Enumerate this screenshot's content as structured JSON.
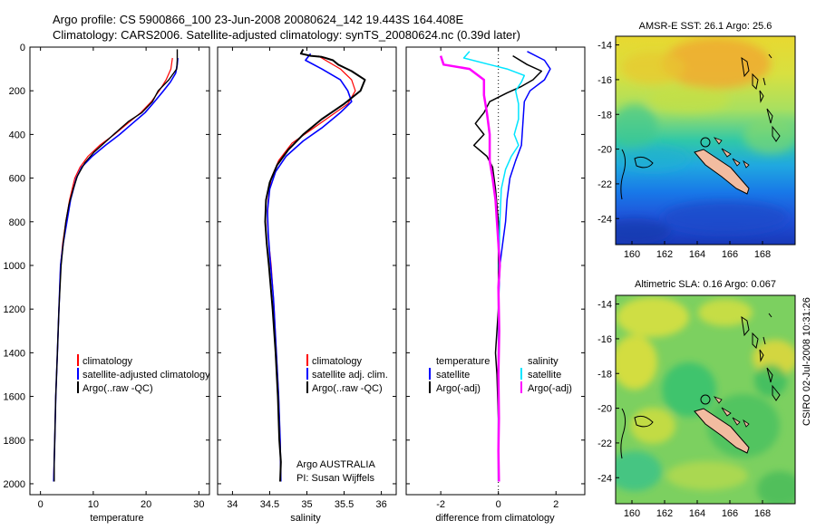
{
  "header": {
    "line1": "Argo profile: CS 5900866_100 23-Jun-2008 20080624_142 19.443S 164.408E",
    "line2": "Climatology: CARS2006. Satellite-adjusted climatology: synTS_20080624.nc (0.39d later)"
  },
  "side_stamp": "CSIRO 02-Jul-2008 10:31:26",
  "colors": {
    "climatology": "#ff0000",
    "satellite": "#0000ff",
    "argo": "#000000",
    "sal_satellite": "#00e5ff",
    "sal_argo": "#ff00ff",
    "land": "#f2bca0"
  },
  "chart_data": [
    {
      "type": "line",
      "title": "",
      "xlabel": "temperature",
      "ylabel": "",
      "xlim": [
        -2,
        32
      ],
      "ylim": [
        2050,
        0
      ],
      "xticks": [
        0,
        10,
        20,
        30
      ],
      "yticks": [
        0,
        200,
        400,
        600,
        800,
        1000,
        1200,
        1400,
        1600,
        1800,
        2000
      ],
      "legend": [
        "climatology",
        "satellite-adjusted climatology",
        "Argo(..raw -QC)"
      ],
      "series": [
        {
          "name": "climatology",
          "color": "#ff0000",
          "width": 1.2,
          "points": [
            [
              25,
              50
            ],
            [
              24.7,
              100
            ],
            [
              23.8,
              150
            ],
            [
              22.5,
              200
            ],
            [
              21,
              250
            ],
            [
              19,
              300
            ],
            [
              16.5,
              350
            ],
            [
              14,
              400
            ],
            [
              11.2,
              450
            ],
            [
              9,
              500
            ],
            [
              7.5,
              550
            ],
            [
              6.5,
              600
            ],
            [
              5.5,
              700
            ],
            [
              4.8,
              800
            ],
            [
              4.2,
              900
            ],
            [
              3.8,
              1000
            ],
            [
              3.5,
              1200
            ],
            [
              3.2,
              1400
            ],
            [
              2.9,
              1600
            ],
            [
              2.7,
              1800
            ],
            [
              2.5,
              1980
            ]
          ]
        },
        {
          "name": "satellite-adjusted climatology",
          "color": "#0000ff",
          "width": 1.6,
          "points": [
            [
              26,
              50
            ],
            [
              25.9,
              80
            ],
            [
              25.6,
              120
            ],
            [
              24.6,
              160
            ],
            [
              23.3,
              200
            ],
            [
              21.6,
              250
            ],
            [
              19.8,
              300
            ],
            [
              17.4,
              350
            ],
            [
              15,
              400
            ],
            [
              12.3,
              450
            ],
            [
              9.8,
              500
            ],
            [
              7.8,
              550
            ],
            [
              6.8,
              600
            ],
            [
              5.7,
              700
            ],
            [
              5,
              800
            ],
            [
              4.3,
              900
            ],
            [
              3.8,
              1000
            ],
            [
              3.5,
              1200
            ],
            [
              3.2,
              1400
            ],
            [
              2.9,
              1600
            ],
            [
              2.7,
              1800
            ],
            [
              2.5,
              1990
            ]
          ]
        },
        {
          "name": "Argo(..raw -QC)",
          "color": "#000000",
          "width": 1.4,
          "points": [
            [
              25.9,
              10
            ],
            [
              25.9,
              60
            ],
            [
              25.8,
              100
            ],
            [
              24.3,
              150
            ],
            [
              22.3,
              200
            ],
            [
              21.2,
              250
            ],
            [
              19.2,
              300
            ],
            [
              16.7,
              340
            ],
            [
              14.8,
              380
            ],
            [
              12.5,
              430
            ],
            [
              10.2,
              480
            ],
            [
              8.4,
              530
            ],
            [
              7,
              590
            ],
            [
              6.2,
              650
            ],
            [
              5.4,
              720
            ],
            [
              4.8,
              800
            ],
            [
              4.3,
              900
            ],
            [
              3.9,
              1000
            ],
            [
              3.5,
              1200
            ],
            [
              3.2,
              1400
            ],
            [
              2.9,
              1600
            ],
            [
              2.7,
              1800
            ],
            [
              2.6,
              1900
            ],
            [
              2.6,
              1990
            ]
          ]
        }
      ]
    },
    {
      "type": "line",
      "title": "",
      "xlabel": "salinity",
      "ylabel": "",
      "xlim": [
        33.8,
        36.2
      ],
      "ylim": [
        2050,
        0
      ],
      "xticks": [
        34,
        34.5,
        35,
        35.5,
        36
      ],
      "yticks": [
        0,
        200,
        400,
        600,
        800,
        1000,
        1200,
        1400,
        1600,
        1800,
        2000
      ],
      "legend": [
        "climatology",
        "satellite adj. clim.",
        "Argo(..raw -QC)"
      ],
      "annotations": [
        "Argo AUSTRALIA",
        "PI: Susan Wijffels"
      ],
      "series": [
        {
          "name": "climatology",
          "color": "#ff0000",
          "width": 1.2,
          "points": [
            [
              35.15,
              40
            ],
            [
              35.3,
              70
            ],
            [
              35.45,
              100
            ],
            [
              35.6,
              150
            ],
            [
              35.65,
              200
            ],
            [
              35.55,
              260
            ],
            [
              35.3,
              320
            ],
            [
              35.05,
              380
            ],
            [
              34.8,
              440
            ],
            [
              34.62,
              520
            ],
            [
              34.52,
              600
            ],
            [
              34.48,
              700
            ],
            [
              34.47,
              800
            ],
            [
              34.49,
              900
            ],
            [
              34.52,
              1000
            ],
            [
              34.56,
              1200
            ],
            [
              34.59,
              1400
            ],
            [
              34.62,
              1600
            ],
            [
              34.64,
              1800
            ],
            [
              34.65,
              1980
            ]
          ]
        },
        {
          "name": "satellite adj. clim.",
          "color": "#0000ff",
          "width": 1.6,
          "points": [
            [
              35.05,
              30
            ],
            [
              34.98,
              60
            ],
            [
              35.2,
              100
            ],
            [
              35.45,
              150
            ],
            [
              35.55,
              200
            ],
            [
              35.6,
              250
            ],
            [
              35.45,
              300
            ],
            [
              35.2,
              370
            ],
            [
              34.95,
              430
            ],
            [
              34.72,
              500
            ],
            [
              34.58,
              570
            ],
            [
              34.5,
              650
            ],
            [
              34.47,
              750
            ],
            [
              34.48,
              850
            ],
            [
              34.5,
              950
            ],
            [
              34.55,
              1150
            ],
            [
              34.59,
              1400
            ],
            [
              34.62,
              1600
            ],
            [
              34.64,
              1800
            ],
            [
              34.65,
              1990
            ]
          ]
        },
        {
          "name": "Argo(..raw -QC)",
          "color": "#000000",
          "width": 2,
          "points": [
            [
              34.95,
              10
            ],
            [
              34.92,
              30
            ],
            [
              35.05,
              40
            ],
            [
              35.2,
              45
            ],
            [
              35.25,
              50
            ],
            [
              35.35,
              60
            ],
            [
              35.42,
              80
            ],
            [
              35.6,
              110
            ],
            [
              35.78,
              150
            ],
            [
              35.72,
              200
            ],
            [
              35.5,
              260
            ],
            [
              35.2,
              330
            ],
            [
              34.95,
              400
            ],
            [
              34.75,
              470
            ],
            [
              34.6,
              540
            ],
            [
              34.5,
              620
            ],
            [
              34.45,
              700
            ],
            [
              34.44,
              800
            ],
            [
              34.46,
              900
            ],
            [
              34.49,
              1000
            ],
            [
              34.54,
              1200
            ],
            [
              34.58,
              1400
            ],
            [
              34.61,
              1600
            ],
            [
              34.63,
              1800
            ],
            [
              34.65,
              1900
            ],
            [
              34.64,
              1990
            ]
          ]
        }
      ]
    },
    {
      "type": "line",
      "title": "",
      "xlabel": "difference from climatology",
      "ylabel": "",
      "xlim": [
        -3.2,
        3
      ],
      "ylim": [
        2050,
        0
      ],
      "xticks": [
        -2,
        0,
        2
      ],
      "yticks": [
        0,
        200,
        400,
        600,
        800,
        1000,
        1200,
        1400,
        1600,
        1800,
        2000
      ],
      "legend_temperature": [
        "temperature",
        "satellite",
        "Argo(-adj)"
      ],
      "legend_salinity": [
        "salinity",
        "satellite",
        "Argo(-adj)"
      ],
      "series": [
        {
          "name": "temperature satellite",
          "color": "#0000ff",
          "width": 1.5,
          "points": [
            [
              1,
              20
            ],
            [
              1.6,
              60
            ],
            [
              1.8,
              100
            ],
            [
              1.6,
              150
            ],
            [
              1.1,
              200
            ],
            [
              0.9,
              250
            ],
            [
              0.85,
              350
            ],
            [
              0.8,
              450
            ],
            [
              0.6,
              520
            ],
            [
              0.4,
              600
            ],
            [
              0.3,
              700
            ],
            [
              0.25,
              800
            ],
            [
              0.15,
              900
            ],
            [
              0.05,
              1000
            ],
            [
              0,
              1200
            ],
            [
              0,
              1990
            ]
          ]
        },
        {
          "name": "temperature Argo(-adj)",
          "color": "#000000",
          "width": 1.5,
          "points": [
            [
              0.5,
              40
            ],
            [
              1,
              80
            ],
            [
              1.5,
              110
            ],
            [
              1.2,
              150
            ],
            [
              0.8,
              180
            ],
            [
              0.3,
              210
            ],
            [
              -0.3,
              250
            ],
            [
              -0.5,
              300
            ],
            [
              -0.8,
              350
            ],
            [
              -0.5,
              400
            ],
            [
              -0.85,
              450
            ],
            [
              -0.4,
              500
            ],
            [
              -0.2,
              550
            ],
            [
              -0.1,
              650
            ],
            [
              0,
              800
            ],
            [
              0,
              1000
            ],
            [
              0,
              1200
            ],
            [
              -0.1,
              1400
            ],
            [
              -0.05,
              1500
            ],
            [
              0,
              1700
            ],
            [
              0,
              1990
            ]
          ]
        },
        {
          "name": "salinity satellite",
          "color": "#00e5ff",
          "width": 1.5,
          "points": [
            [
              -1,
              20
            ],
            [
              -1.2,
              50
            ],
            [
              -0.3,
              80
            ],
            [
              0.3,
              100
            ],
            [
              0.9,
              130
            ],
            [
              0.8,
              160
            ],
            [
              0.6,
              200
            ],
            [
              0.7,
              260
            ],
            [
              0.7,
              330
            ],
            [
              0.55,
              400
            ],
            [
              0.7,
              450
            ],
            [
              0.45,
              500
            ],
            [
              0.25,
              560
            ],
            [
              0.1,
              650
            ],
            [
              0.05,
              800
            ],
            [
              0.02,
              1000
            ],
            [
              0,
              1400
            ],
            [
              0,
              1990
            ]
          ]
        },
        {
          "name": "salinity Argo(-adj)",
          "color": "#ff00ff",
          "width": 2.5,
          "points": [
            [
              -2,
              40
            ],
            [
              -1.9,
              80
            ],
            [
              -1,
              100
            ],
            [
              -0.5,
              150
            ],
            [
              -0.5,
              220
            ],
            [
              -0.4,
              300
            ],
            [
              -0.3,
              400
            ],
            [
              -0.3,
              520
            ],
            [
              -0.2,
              600
            ],
            [
              -0.1,
              700
            ],
            [
              -0.05,
              800
            ],
            [
              0,
              900
            ],
            [
              0.05,
              1000
            ],
            [
              0,
              1100
            ],
            [
              0.03,
              1300
            ],
            [
              0,
              1500
            ],
            [
              0.02,
              1700
            ],
            [
              0,
              1850
            ],
            [
              0.02,
              1990
            ]
          ]
        }
      ]
    },
    {
      "type": "heatmap",
      "title": "AMSR-E SST: 26.1 Argo: 25.6",
      "xlim": [
        159,
        170
      ],
      "ylim": [
        -25.5,
        -13.5
      ],
      "xticks": [
        160,
        162,
        164,
        166,
        168
      ],
      "yticks": [
        -14,
        -16,
        -18,
        -20,
        -22,
        -24
      ],
      "marker": {
        "lon": 164.408,
        "lat": -19.443
      }
    },
    {
      "type": "heatmap",
      "title": "Altimetric SLA: 0.16 Argo: 0.067",
      "xlim": [
        159,
        170
      ],
      "ylim": [
        -25.5,
        -13.5
      ],
      "xticks": [
        160,
        162,
        164,
        166,
        168
      ],
      "yticks": [
        -14,
        -16,
        -18,
        -20,
        -22,
        -24
      ],
      "marker": {
        "lon": 164.408,
        "lat": -19.443
      }
    }
  ]
}
